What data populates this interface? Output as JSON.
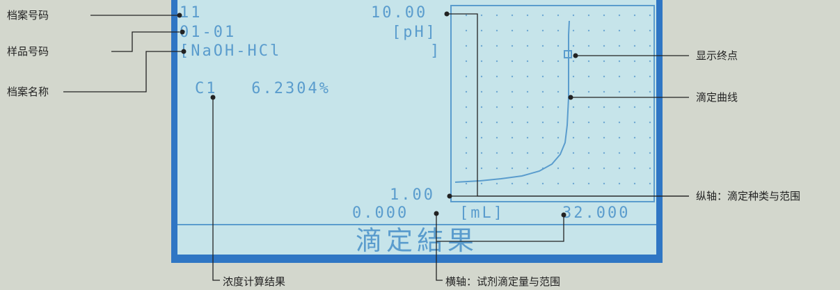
{
  "lcd": {
    "file_number": "11",
    "sample_number": "01-01",
    "file_name": "[NaOH-HCl",
    "file_name_close": "]",
    "y_max": "10.00",
    "y_unit": "[pH]",
    "y_min": "1.00",
    "x_min": "0.000",
    "x_unit": "[mL]",
    "x_max": "32.000",
    "result": "C1   6.2304%",
    "title": "滴定結果"
  },
  "callouts": {
    "file_number": "档案号码",
    "sample_number": "样品号码",
    "file_name": "档案名称",
    "endpoint": "显示终点",
    "curve": "滴定曲线",
    "y_axis": "纵轴：滴定种类与范围",
    "concentration": "浓度计算结果",
    "x_axis": "横轴：试剂滴定量与范围"
  },
  "colors": {
    "lcd_background": "#c6e4ea",
    "lcd_foreground": "#5a9ccd",
    "frame": "#2f76c4",
    "page_background": "#d3d7cd"
  }
}
